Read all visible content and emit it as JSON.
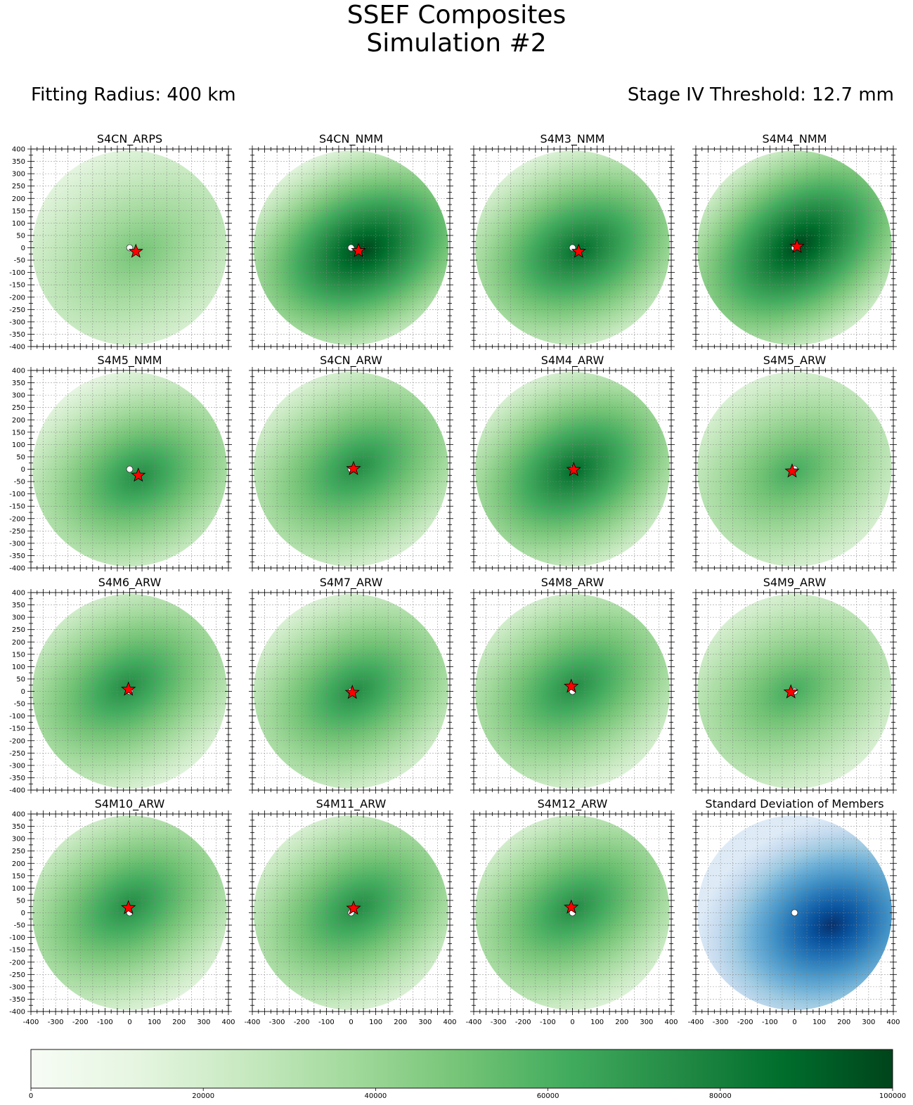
{
  "title": "SSEF Composites",
  "subtitle": "Simulation #2",
  "fitting_radius_label": "Fitting Radius: 400 km",
  "threshold_label": "Stage IV Threshold: 12.7 mm",
  "colors": {
    "greens": [
      "#f7fcf5",
      "#e5f5e0",
      "#c7e9c0",
      "#a1d99b",
      "#74c476",
      "#41ab5d",
      "#238b45",
      "#006d2c",
      "#00441b"
    ],
    "blues": [
      "#f7fbff",
      "#deebf7",
      "#c6dbef",
      "#9ecae1",
      "#6baed6",
      "#4292c6",
      "#2171b5",
      "#08519c",
      "#08306b"
    ],
    "star": "#ff0000",
    "dot": "#ffffff",
    "grid": "#808080"
  },
  "chart_data": {
    "type": "heatmap",
    "axes": {
      "xlim": [
        -400,
        400
      ],
      "ylim": [
        -400,
        400
      ],
      "xticks": [
        -400,
        -300,
        -200,
        -100,
        0,
        100,
        200,
        300,
        400
      ],
      "yticks": [
        400,
        350,
        300,
        250,
        200,
        150,
        100,
        50,
        0,
        -50,
        -100,
        -150,
        -200,
        -250,
        -300,
        -350,
        -400
      ],
      "grid": true
    },
    "colorbar": {
      "min": 0,
      "max": 100000,
      "ticks": [
        0,
        20000,
        40000,
        60000,
        80000,
        100000
      ],
      "colormap": "greens",
      "orientation": "horizontal",
      "placement": "bottom"
    },
    "panels": [
      {
        "title": "S4CN_ARPS",
        "star": [
          25,
          -15
        ],
        "intensity": 0.55,
        "peak": [
          40,
          -20
        ],
        "elong": 1.45,
        "angle": -30,
        "colormap": "greens"
      },
      {
        "title": "S4CN_NMM",
        "star": [
          30,
          -12
        ],
        "intensity": 0.97,
        "peak": [
          50,
          -10
        ],
        "elong": 1.5,
        "angle": -25,
        "colormap": "greens"
      },
      {
        "title": "S4M3_NMM",
        "star": [
          25,
          -15
        ],
        "intensity": 0.82,
        "peak": [
          30,
          -10
        ],
        "elong": 1.45,
        "angle": -25,
        "colormap": "greens"
      },
      {
        "title": "S4M4_NMM",
        "star": [
          10,
          5
        ],
        "intensity": 0.95,
        "peak": [
          20,
          10
        ],
        "elong": 1.55,
        "angle": -35,
        "colormap": "greens"
      },
      {
        "title": "S4M5_NMM",
        "star": [
          35,
          -25
        ],
        "intensity": 0.8,
        "peak": [
          40,
          -30
        ],
        "elong": 1.4,
        "angle": -25,
        "colormap": "greens"
      },
      {
        "title": "S4CN_ARW",
        "star": [
          10,
          2
        ],
        "intensity": 0.8,
        "peak": [
          30,
          10
        ],
        "elong": 1.5,
        "angle": -30,
        "colormap": "greens"
      },
      {
        "title": "S4M4_ARW",
        "star": [
          5,
          -2
        ],
        "intensity": 0.9,
        "peak": [
          10,
          -5
        ],
        "elong": 1.45,
        "angle": -30,
        "colormap": "greens"
      },
      {
        "title": "S4M5_ARW",
        "star": [
          -10,
          -8
        ],
        "intensity": 0.62,
        "peak": [
          -5,
          -10
        ],
        "elong": 1.4,
        "angle": -30,
        "colormap": "greens"
      },
      {
        "title": "S4M6_ARW",
        "star": [
          -5,
          8
        ],
        "intensity": 0.72,
        "peak": [
          -10,
          20
        ],
        "elong": 1.5,
        "angle": -30,
        "colormap": "greens"
      },
      {
        "title": "S4M7_ARW",
        "star": [
          5,
          -5
        ],
        "intensity": 0.72,
        "peak": [
          20,
          0
        ],
        "elong": 1.45,
        "angle": -30,
        "colormap": "greens"
      },
      {
        "title": "S4M8_ARW",
        "star": [
          -5,
          20
        ],
        "intensity": 0.7,
        "peak": [
          10,
          20
        ],
        "elong": 1.5,
        "angle": -30,
        "colormap": "greens"
      },
      {
        "title": "S4M9_ARW",
        "star": [
          -15,
          -3
        ],
        "intensity": 0.68,
        "peak": [
          -10,
          0
        ],
        "elong": 1.45,
        "angle": -30,
        "colormap": "greens"
      },
      {
        "title": "S4M10_ARW",
        "star": [
          -5,
          20
        ],
        "intensity": 0.75,
        "peak": [
          0,
          30
        ],
        "elong": 1.5,
        "angle": -30,
        "colormap": "greens"
      },
      {
        "title": "S4M11_ARW",
        "star": [
          10,
          18
        ],
        "intensity": 0.78,
        "peak": [
          30,
          20
        ],
        "elong": 1.5,
        "angle": -30,
        "colormap": "greens"
      },
      {
        "title": "S4M12_ARW",
        "star": [
          -5,
          22
        ],
        "intensity": 0.7,
        "peak": [
          10,
          20
        ],
        "elong": 1.5,
        "angle": -30,
        "colormap": "greens"
      },
      {
        "title": "Standard Deviation of Members",
        "star": null,
        "intensity": 1.0,
        "peak": [
          150,
          -50
        ],
        "elong": 1.3,
        "angle": -20,
        "colormap": "blues"
      }
    ]
  }
}
